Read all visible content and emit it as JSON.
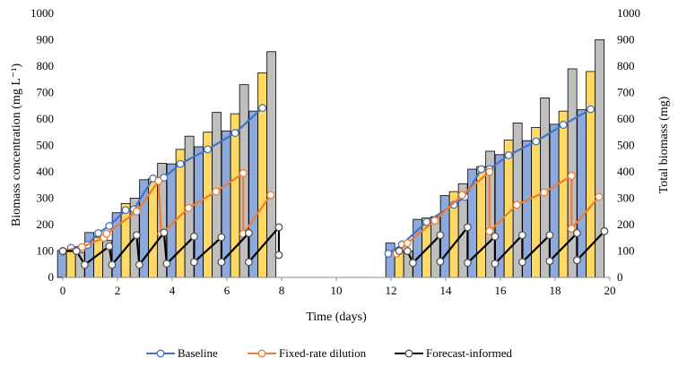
{
  "chart_data": {
    "type": "bar+line",
    "xlabel": "Time (days)",
    "ylabel_left": "Biomass concentration (mg L⁻¹)",
    "ylabel_right": "Total biomass (mg)",
    "x_ticks": [
      "0",
      "2",
      "4",
      "6",
      "8",
      "10",
      "12",
      "14",
      "16",
      "18",
      "20"
    ],
    "y_ticks": [
      "0",
      "100",
      "200",
      "300",
      "400",
      "500",
      "600",
      "700",
      "800",
      "900",
      "1000"
    ],
    "xlim": [
      0,
      20
    ],
    "ylim": [
      0,
      1000
    ],
    "ylim_right": [
      0,
      1000
    ],
    "grid": false,
    "legend_position": "bottom",
    "colors": {
      "baseline_line": "#4472C4",
      "fixed_line": "#ED7D31",
      "forecast_line": "#000000",
      "baseline_bar": "#8EA9DB",
      "fixed_bar": "#FFD966",
      "forecast_bar": "#BFBFBF"
    },
    "legend": [
      "Baseline",
      "Fixed-rate dilution",
      "Forecast-informed"
    ],
    "line_series": [
      {
        "name": "Baseline",
        "points": [
          [
            0,
            98
          ],
          [
            0.3,
            112
          ],
          [
            0.9,
            123
          ],
          [
            1.3,
            168
          ],
          [
            1.7,
            195
          ],
          [
            2.3,
            255
          ],
          [
            2.6,
            258
          ],
          [
            3.3,
            375
          ],
          [
            3.7,
            378
          ],
          [
            4.3,
            430
          ],
          [
            5.3,
            485
          ],
          [
            6.3,
            547
          ],
          [
            7.3,
            642
          ],
          [
            11.9,
            90
          ],
          [
            12.4,
            125
          ],
          [
            13.3,
            210
          ],
          [
            14.3,
            275
          ],
          [
            14.7,
            305
          ],
          [
            15.3,
            410
          ],
          [
            15.6,
            410
          ],
          [
            16.3,
            463
          ],
          [
            17.3,
            515
          ],
          [
            18.3,
            578
          ],
          [
            19.3,
            637
          ]
        ]
      },
      {
        "name": "Fixed-rate dilution",
        "points": [
          [
            0,
            100
          ],
          [
            0.7,
            115
          ],
          [
            1.5,
            150
          ],
          [
            1.6,
            165
          ],
          [
            2.7,
            250
          ],
          [
            3.5,
            365
          ],
          [
            3.6,
            165
          ],
          [
            4.6,
            263
          ],
          [
            5.6,
            325
          ],
          [
            6.6,
            395
          ],
          [
            6.6,
            165
          ],
          [
            7.6,
            312
          ],
          [
            12.2,
            90
          ],
          [
            12.6,
            130
          ],
          [
            13.6,
            215
          ],
          [
            14.6,
            312
          ],
          [
            15.6,
            400
          ],
          [
            15.6,
            175
          ],
          [
            16.6,
            275
          ],
          [
            17.6,
            322
          ],
          [
            18.6,
            385
          ],
          [
            18.6,
            185
          ],
          [
            19.6,
            305
          ]
        ]
      },
      {
        "name": "Forecast-informed",
        "points": [
          [
            0,
            100
          ],
          [
            0.5,
            100
          ],
          [
            0.8,
            48
          ],
          [
            1.7,
            118
          ],
          [
            1.8,
            48
          ],
          [
            2.7,
            160
          ],
          [
            2.8,
            48
          ],
          [
            3.7,
            170
          ],
          [
            3.8,
            52
          ],
          [
            4.8,
            155
          ],
          [
            4.8,
            58
          ],
          [
            5.8,
            152
          ],
          [
            5.8,
            58
          ],
          [
            6.8,
            168
          ],
          [
            6.8,
            58
          ],
          [
            7.9,
            190
          ],
          [
            7.9,
            85
          ],
          [
            12.3,
            100
          ],
          [
            12.6,
            100
          ],
          [
            12.8,
            55
          ],
          [
            13.8,
            160
          ],
          [
            13.8,
            60
          ],
          [
            14.8,
            190
          ],
          [
            14.8,
            55
          ],
          [
            15.8,
            155
          ],
          [
            15.8,
            52
          ],
          [
            16.8,
            160
          ],
          [
            16.8,
            58
          ],
          [
            17.8,
            160
          ],
          [
            17.8,
            62
          ],
          [
            18.8,
            168
          ],
          [
            18.8,
            65
          ],
          [
            19.8,
            175
          ]
        ]
      }
    ],
    "bar_groups": [
      {
        "x": 0.3,
        "values": [
          102,
          100,
          95
        ]
      },
      {
        "x": 1.3,
        "values": [
          170,
          152,
          140
        ]
      },
      {
        "x": 2.3,
        "values": [
          245,
          280,
          300
        ]
      },
      {
        "x": 3.3,
        "values": [
          370,
          375,
          432
        ]
      },
      {
        "x": 4.3,
        "values": [
          430,
          485,
          535
        ]
      },
      {
        "x": 5.3,
        "values": [
          495,
          550,
          625
        ]
      },
      {
        "x": 6.3,
        "values": [
          555,
          620,
          730
        ]
      },
      {
        "x": 7.3,
        "values": [
          630,
          775,
          855
        ]
      },
      {
        "x": 12.3,
        "values": [
          130,
          100,
          100
        ]
      },
      {
        "x": 13.3,
        "values": [
          220,
          225,
          230
        ]
      },
      {
        "x": 14.3,
        "values": [
          310,
          325,
          355
        ]
      },
      {
        "x": 15.3,
        "values": [
          410,
          420,
          478
        ]
      },
      {
        "x": 16.3,
        "values": [
          465,
          520,
          585
        ]
      },
      {
        "x": 17.3,
        "values": [
          518,
          568,
          680
        ]
      },
      {
        "x": 18.3,
        "values": [
          580,
          630,
          790
        ]
      },
      {
        "x": 19.3,
        "values": [
          635,
          780,
          900
        ]
      }
    ]
  }
}
